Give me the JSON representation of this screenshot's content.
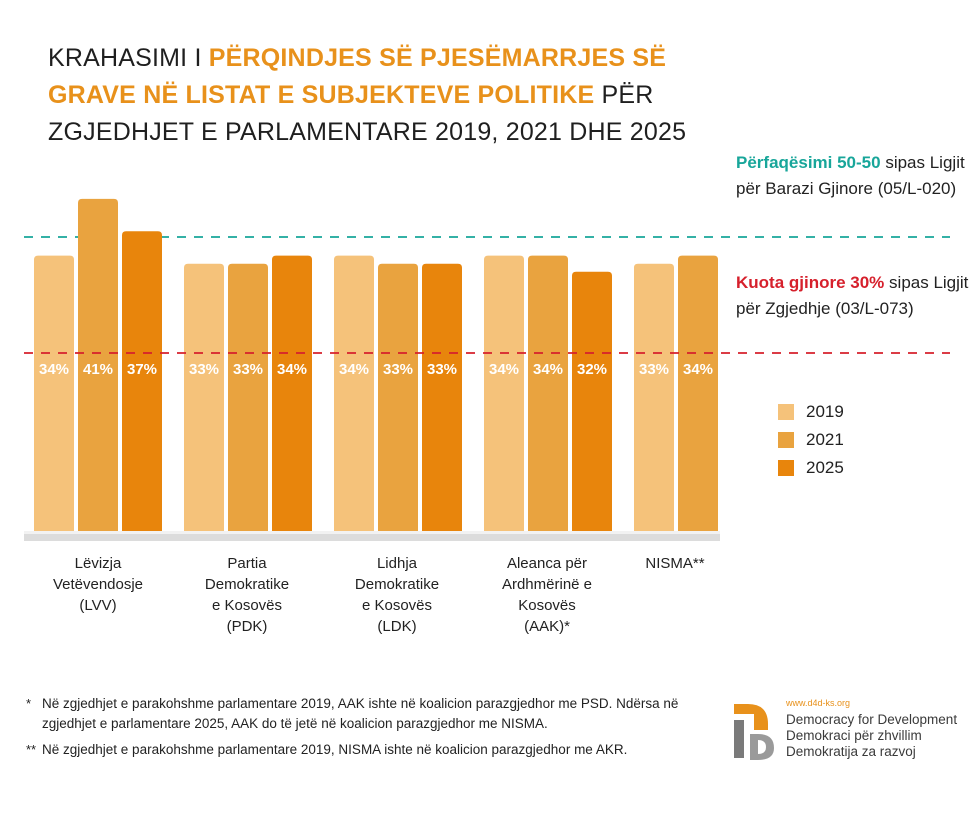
{
  "title": {
    "part1": "KRAHASIMI I ",
    "highlight": "PËRQINDJES SË PJESËMARRJES SË GRAVE NË LISTAT E SUBJEKTEVE POLITIKE",
    "part2": " PËR ZGJEDHJET E PARLAMENTARE 2019, 2021 DHE 2025"
  },
  "reference_lines": {
    "equal": {
      "highlight": "Përfaqësimi 50-50",
      "text": " sipas Ligjit për Barazi Gjinore (05/L-020)",
      "color": "#18a69a"
    },
    "quota": {
      "highlight": "Kuota gjinore 30%",
      "text": " sipas Ligjit për Zgjedhje (03/L-073)",
      "color": "#d6202c"
    }
  },
  "chart_data": {
    "type": "bar",
    "title": "Krahasimi i përqindjes së pjesëmarrjes së grave në listat e subjekteve politike për zgjedhjet e parlamentare 2019, 2021 dhe 2025",
    "categories": [
      "Lëvizja Vetëvendosje (LVV)",
      "Partia Demokratike e Kosovës (PDK)",
      "Lidhja Demokratike e Kosovës (LDK)",
      "Aleanca për Ardhmërinë e Kosovës (AAK)*",
      "NISMA**"
    ],
    "category_lines": [
      "Lëvizja\nVetëvendosje\n(LVV)",
      "Partia\nDemokratike\ne Kosovës\n(PDK)",
      "Lidhja\nDemokratike\ne Kosovës\n(LDK)",
      "Aleanca për\nArdhmërinë e\nKosovës\n(AAK)*",
      "NISMA**"
    ],
    "series": [
      {
        "name": "2019",
        "color": "#f5c27a",
        "values": [
          34,
          33,
          34,
          34,
          33
        ]
      },
      {
        "name": "2021",
        "color": "#e9a33f",
        "values": [
          41,
          33,
          33,
          34,
          34
        ]
      },
      {
        "name": "2025",
        "color": "#e8850c",
        "values": [
          37,
          34,
          33,
          32,
          null
        ]
      }
    ],
    "value_suffix": "%",
    "reference_values": {
      "equal": 50,
      "quota": 30
    },
    "ylim": [
      0,
      50
    ],
    "xlabel": "",
    "ylabel": ""
  },
  "footnotes": [
    {
      "mark": "*",
      "text": "Në zgjedhjet e parakohshme parlamentare 2019, AAK ishte në koalicion parazgjedhor me PSD. Ndërsa në zgjedhjet e parlamentare 2025, AAK do të jetë në koalicion parazgjedhor me NISMA."
    },
    {
      "mark": "**",
      "text": "Në zgjedhjet e parakohshme parlamentare 2019, NISMA ishte në koalicion parazgjedhor me AKR."
    }
  ],
  "logo": {
    "url": "www.d4d-ks.org",
    "lines": [
      "Democracy for Development",
      "Demokraci për zhvillim",
      "Demokratija za razvoj"
    ],
    "icon": "d4d-logo-icon"
  }
}
